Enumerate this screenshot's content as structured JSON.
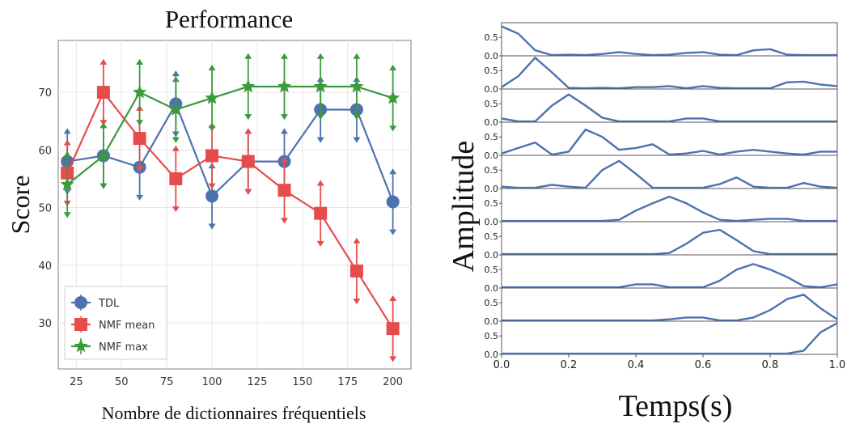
{
  "chart_data": [
    {
      "type": "line",
      "title": "Performance",
      "xlabel": "Nombre de dictionnaires fréquentiels",
      "ylabel": "Score",
      "xlim": [
        15,
        210
      ],
      "ylim": [
        22,
        79
      ],
      "xticks": [
        25,
        50,
        75,
        100,
        125,
        150,
        175,
        200
      ],
      "yticks": [
        30,
        40,
        50,
        60,
        70
      ],
      "x": [
        20,
        40,
        60,
        80,
        100,
        120,
        140,
        160,
        180,
        200
      ],
      "grid": true,
      "legend_position": "bottom-left",
      "series": [
        {
          "name": "TDL",
          "marker": "circle",
          "color": "#4C72B0",
          "values": [
            58,
            59,
            57,
            68,
            52,
            58,
            58,
            67,
            67,
            51
          ],
          "errors": [
            5.5,
            5.5,
            5.5,
            5.5,
            5.5,
            5.5,
            5.5,
            5.5,
            5.5,
            5.5
          ]
        },
        {
          "name": "NMF mean",
          "marker": "square",
          "color": "#E74C4C",
          "values": [
            56,
            70,
            62,
            55,
            59,
            58,
            53,
            49,
            39,
            29
          ],
          "errors": [
            5.5,
            5.5,
            5.5,
            5.5,
            5.5,
            5.5,
            5.5,
            5.5,
            5.5,
            5.5
          ]
        },
        {
          "name": "NMF max",
          "marker": "star",
          "color": "#3B9A3B",
          "values": [
            54,
            59,
            70,
            67,
            69,
            71,
            71,
            71,
            71,
            69
          ],
          "errors": [
            5.5,
            5.5,
            5.5,
            5.5,
            5.5,
            5.5,
            5.5,
            5.5,
            5.5,
            5.5
          ]
        }
      ]
    },
    {
      "type": "line",
      "title": "",
      "xlabel": "Temps(s)",
      "ylabel": "Amplitude",
      "xlim": [
        0,
        1
      ],
      "ylim": [
        0,
        0.9
      ],
      "xticks": [
        "0.0",
        "0.2",
        "0.4",
        "0.6",
        "0.8",
        "1.0"
      ],
      "yticks": [
        "0.0",
        "0.5"
      ],
      "color": "#4C72B0",
      "x": [
        0,
        0.05,
        0.1,
        0.15,
        0.2,
        0.25,
        0.3,
        0.35,
        0.4,
        0.45,
        0.5,
        0.55,
        0.6,
        0.65,
        0.7,
        0.75,
        0.8,
        0.85,
        0.9,
        0.95,
        1.0
      ],
      "panels": [
        [
          0.8,
          0.6,
          0.15,
          0.02,
          0.03,
          0.02,
          0.05,
          0.1,
          0.05,
          0.02,
          0.03,
          0.08,
          0.1,
          0.03,
          0.02,
          0.15,
          0.18,
          0.03,
          0.02,
          0.02,
          0.02
        ],
        [
          0.05,
          0.35,
          0.85,
          0.45,
          0.03,
          0.02,
          0.03,
          0.02,
          0.05,
          0.05,
          0.08,
          0.02,
          0.08,
          0.03,
          0.02,
          0.02,
          0.02,
          0.18,
          0.2,
          0.12,
          0.08
        ],
        [
          0.1,
          0.02,
          0.02,
          0.45,
          0.75,
          0.45,
          0.12,
          0.02,
          0.02,
          0.02,
          0.02,
          0.1,
          0.1,
          0.02,
          0.02,
          0.02,
          0.02,
          0.02,
          0.02,
          0.02,
          0.02
        ],
        [
          0.05,
          0.2,
          0.35,
          0.02,
          0.1,
          0.7,
          0.5,
          0.15,
          0.2,
          0.3,
          0.02,
          0.05,
          0.12,
          0.02,
          0.1,
          0.15,
          0.1,
          0.05,
          0.02,
          0.1,
          0.1
        ],
        [
          0.05,
          0.02,
          0.02,
          0.1,
          0.05,
          0.02,
          0.5,
          0.75,
          0.4,
          0.02,
          0.02,
          0.02,
          0.02,
          0.12,
          0.3,
          0.05,
          0.02,
          0.02,
          0.15,
          0.05,
          0.02
        ],
        [
          0.02,
          0.02,
          0.02,
          0.02,
          0.02,
          0.02,
          0.02,
          0.05,
          0.3,
          0.5,
          0.68,
          0.5,
          0.25,
          0.05,
          0.02,
          0.05,
          0.08,
          0.08,
          0.02,
          0.02,
          0.02
        ],
        [
          0.02,
          0.02,
          0.02,
          0.02,
          0.02,
          0.02,
          0.02,
          0.02,
          0.02,
          0.02,
          0.05,
          0.3,
          0.6,
          0.68,
          0.4,
          0.1,
          0.02,
          0.02,
          0.02,
          0.02,
          0.02
        ],
        [
          0.02,
          0.02,
          0.02,
          0.02,
          0.02,
          0.02,
          0.02,
          0.02,
          0.1,
          0.1,
          0.02,
          0.02,
          0.02,
          0.2,
          0.5,
          0.65,
          0.5,
          0.3,
          0.05,
          0.02,
          0.1
        ],
        [
          0.02,
          0.02,
          0.02,
          0.02,
          0.02,
          0.02,
          0.02,
          0.02,
          0.02,
          0.02,
          0.05,
          0.1,
          0.1,
          0.02,
          0.02,
          0.1,
          0.3,
          0.6,
          0.72,
          0.35,
          0.05
        ],
        [
          0.02,
          0.02,
          0.02,
          0.02,
          0.02,
          0.02,
          0.02,
          0.02,
          0.02,
          0.02,
          0.02,
          0.02,
          0.02,
          0.02,
          0.02,
          0.02,
          0.02,
          0.02,
          0.1,
          0.6,
          0.85
        ]
      ]
    }
  ]
}
